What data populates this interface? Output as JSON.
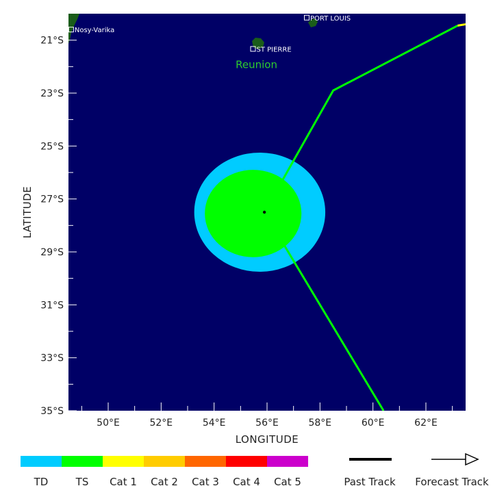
{
  "axes": {
    "xlabel": "LONGITUDE",
    "ylabel": "LATITUDE",
    "x_ticks": [
      {
        "value": 50,
        "label": "50°E"
      },
      {
        "value": 52,
        "label": "52°E"
      },
      {
        "value": 54,
        "label": "54°E"
      },
      {
        "value": 56,
        "label": "56°E"
      },
      {
        "value": 58,
        "label": "58°E"
      },
      {
        "value": 60,
        "label": "60°E"
      },
      {
        "value": 62,
        "label": "62°E"
      }
    ],
    "y_ticks": [
      {
        "value": -21,
        "label": "21°S"
      },
      {
        "value": -23,
        "label": "23°S"
      },
      {
        "value": -25,
        "label": "25°S"
      },
      {
        "value": -27,
        "label": "27°S"
      },
      {
        "value": -29,
        "label": "29°S"
      },
      {
        "value": -31,
        "label": "31°S"
      },
      {
        "value": -33,
        "label": "33°S"
      },
      {
        "value": -35,
        "label": "35°S"
      }
    ]
  },
  "places": [
    {
      "name": "Nosy-Varika",
      "lon": 48.6,
      "lat": -20.6
    },
    {
      "name": "PORT LOUIS",
      "lon": 57.5,
      "lat": -20.15
    },
    {
      "name": "ST PIERRE",
      "lon": 55.47,
      "lat": -21.33
    }
  ],
  "region_labels": [
    {
      "text": "Reunion",
      "lon": 55.6,
      "lat": -22.05
    }
  ],
  "storm": {
    "center": {
      "lon": 55.9,
      "lat": -27.5
    },
    "wind_radii": [
      {
        "category": "TD",
        "color": "#00ccff",
        "lon_min": 53.25,
        "lon_max": 58.2,
        "lat_min": -29.75,
        "lat_max": -25.25
      },
      {
        "category": "TS",
        "color": "#00ff00",
        "lon_min": 53.65,
        "lon_max": 57.3,
        "lat_min": -29.2,
        "lat_max": -25.9
      }
    ],
    "track": {
      "color": "#00ff00",
      "points": [
        {
          "lon": 60.4,
          "lat": -35.0
        },
        {
          "lon": 55.9,
          "lat": -27.5
        },
        {
          "lon": 58.5,
          "lat": -22.9
        },
        {
          "lon": 63.2,
          "lat": -20.45
        }
      ],
      "tail_color": "#ffff00"
    }
  },
  "legend": {
    "categories": [
      {
        "label": "TD",
        "color": "#00ccff"
      },
      {
        "label": "TS",
        "color": "#00ff00"
      },
      {
        "label": "Cat 1",
        "color": "#ffff00"
      },
      {
        "label": "Cat 2",
        "color": "#ffcc00"
      },
      {
        "label": "Cat 3",
        "color": "#ff6600"
      },
      {
        "label": "Cat 4",
        "color": "#ff0000"
      },
      {
        "label": "Cat 5",
        "color": "#cc00cc"
      }
    ],
    "past_track_label": "Past Track",
    "forecast_track_label": "Forecast Track"
  },
  "colors": {
    "ocean": "#000066",
    "land": "#1a5c1a"
  }
}
